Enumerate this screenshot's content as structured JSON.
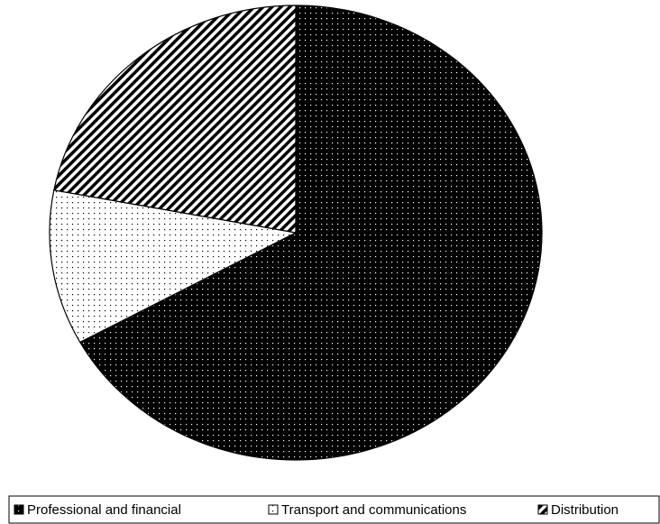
{
  "chart_data": {
    "type": "pie",
    "categories": [
      "Professional and financial",
      "Transport and communications",
      "Distribution"
    ],
    "values": [
      67,
      11,
      22
    ]
  }
}
